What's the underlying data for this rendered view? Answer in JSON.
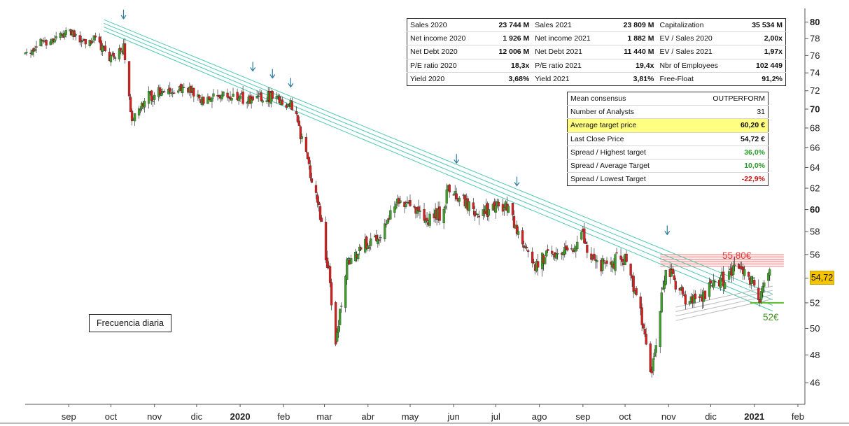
{
  "chart_data": {
    "type": "candlestick",
    "frequency_label": "Frecuencia diaria",
    "ylim": [
      44.5,
      81
    ],
    "y_ticks": [
      46,
      48,
      50,
      52,
      54,
      56,
      58,
      60,
      62,
      64,
      66,
      68,
      70,
      72,
      74,
      76,
      78,
      80
    ],
    "bold_y_ticks": [
      60,
      70,
      80
    ],
    "x_ticks": [
      {
        "label": "sep",
        "date": "2019-09-15"
      },
      {
        "label": "oct",
        "date": "2019-10-15"
      },
      {
        "label": "nov",
        "date": "2019-11-15"
      },
      {
        "label": "dic",
        "date": "2019-12-15"
      },
      {
        "label": "2020",
        "date": "2020-01-15",
        "bold": true
      },
      {
        "label": "feb",
        "date": "2020-02-15"
      },
      {
        "label": "mar",
        "date": "2020-03-15"
      },
      {
        "label": "abr",
        "date": "2020-04-15"
      },
      {
        "label": "may",
        "date": "2020-05-15"
      },
      {
        "label": "jun",
        "date": "2020-06-15"
      },
      {
        "label": "jul",
        "date": "2020-07-15"
      },
      {
        "label": "ago",
        "date": "2020-08-15"
      },
      {
        "label": "sep",
        "date": "2020-09-15"
      },
      {
        "label": "oct",
        "date": "2020-10-15"
      },
      {
        "label": "nov",
        "date": "2020-11-15"
      },
      {
        "label": "dic",
        "date": "2020-12-15"
      },
      {
        "label": "2021",
        "date": "2021-01-15",
        "bold": true
      },
      {
        "label": "feb",
        "date": "2021-02-15"
      }
    ],
    "x_range": [
      "2019-08-15",
      "2021-02-20"
    ],
    "price_path": [
      [
        "2019-08-15",
        76.0
      ],
      [
        "2019-08-25",
        77.5
      ],
      [
        "2019-09-05",
        78.0
      ],
      [
        "2019-09-15",
        79.0
      ],
      [
        "2019-09-25",
        77.5
      ],
      [
        "2019-10-05",
        78.0
      ],
      [
        "2019-10-15",
        75.5
      ],
      [
        "2019-10-24",
        77.0
      ],
      [
        "2019-10-30",
        68.8
      ],
      [
        "2019-11-08",
        71.0
      ],
      [
        "2019-11-20",
        72.0
      ],
      [
        "2019-12-05",
        72.3
      ],
      [
        "2019-12-20",
        71.0
      ],
      [
        "2020-01-08",
        71.5
      ],
      [
        "2020-01-22",
        70.8
      ],
      [
        "2020-02-05",
        71.3
      ],
      [
        "2020-02-20",
        70.5
      ],
      [
        "2020-02-26",
        68.0
      ],
      [
        "2020-03-05",
        63.5
      ],
      [
        "2020-03-12",
        59.5
      ],
      [
        "2020-03-19",
        53.5
      ],
      [
        "2020-03-23",
        49.0
      ],
      [
        "2020-03-31",
        55.0
      ],
      [
        "2020-04-15",
        57.0
      ],
      [
        "2020-04-25",
        58.0
      ],
      [
        "2020-05-05",
        60.5
      ],
      [
        "2020-05-15",
        61.0
      ],
      [
        "2020-05-25",
        59.0
      ],
      [
        "2020-06-05",
        59.5
      ],
      [
        "2020-06-12",
        62.0
      ],
      [
        "2020-06-20",
        61.0
      ],
      [
        "2020-06-30",
        59.5
      ],
      [
        "2020-07-10",
        60.0
      ],
      [
        "2020-07-22",
        60.5
      ],
      [
        "2020-08-01",
        57.5
      ],
      [
        "2020-08-10",
        55.0
      ],
      [
        "2020-08-20",
        56.0
      ],
      [
        "2020-09-05",
        56.5
      ],
      [
        "2020-09-15",
        57.5
      ],
      [
        "2020-09-25",
        55.0
      ],
      [
        "2020-10-05",
        55.5
      ],
      [
        "2020-10-15",
        55.5
      ],
      [
        "2020-10-22",
        53.0
      ],
      [
        "2020-10-30",
        49.0
      ],
      [
        "2020-11-03",
        46.5
      ],
      [
        "2020-11-09",
        51.5
      ],
      [
        "2020-11-13",
        55.0
      ],
      [
        "2020-11-20",
        53.5
      ],
      [
        "2020-11-28",
        52.0
      ],
      [
        "2020-12-08",
        52.5
      ],
      [
        "2020-12-18",
        53.5
      ],
      [
        "2020-12-30",
        54.5
      ],
      [
        "2021-01-08",
        55.0
      ],
      [
        "2021-01-14",
        53.5
      ],
      [
        "2021-01-19",
        52.5
      ],
      [
        "2021-01-26",
        54.72
      ]
    ],
    "trend_channel": {
      "start": [
        "2019-10-10",
        80.3
      ],
      "end": [
        "2021-01-28",
        52.7
      ],
      "lines": 4,
      "spacing": 0.45,
      "color": "#4ec9b0"
    },
    "support_wedge": {
      "start": [
        "2020-11-20",
        50.6
      ],
      "end": [
        "2021-01-28",
        52.3
      ],
      "lines": 4,
      "spacing": -0.35,
      "color": "#bbbbbb"
    },
    "resistance_zone": {
      "from": "2020-11-09",
      "to": "2021-02-05",
      "low": 55.0,
      "high": 56.0,
      "color": "#f28c8c"
    },
    "support_line": {
      "from": "2021-01-12",
      "to": "2021-02-05",
      "level": 52.0,
      "color": "#5cbf2a"
    },
    "touch_arrows": [
      [
        "2019-10-24",
        80.5
      ],
      [
        "2020-01-24",
        74.3
      ],
      [
        "2020-02-07",
        73.5
      ],
      [
        "2020-02-20",
        72.5
      ],
      [
        "2020-06-17",
        64.5
      ],
      [
        "2020-07-30",
        62.3
      ],
      [
        "2020-11-14",
        57.8
      ]
    ],
    "last_close": "54,72",
    "annotations": {
      "resistance": "55,80€",
      "support": "52€"
    },
    "colors": {
      "up": "#3f9f2a",
      "down": "#d42222",
      "axis": "#555555",
      "arrow": "#2b7aa0"
    }
  },
  "financials": {
    "rows": [
      [
        "Sales 2020",
        "23 744 M",
        "Sales 2021",
        "23 809 M",
        "Capitalization",
        "35 534 M"
      ],
      [
        "Net income 2020",
        "1 926 M",
        "Net income 2021",
        "1 882 M",
        "EV / Sales 2020",
        "2,00x"
      ],
      [
        "Net Debt 2020",
        "12 006 M",
        "Net Debt 2021",
        "11 440 M",
        "EV / Sales 2021",
        "1,97x"
      ],
      [
        "P/E ratio 2020",
        "18,3x",
        "P/E ratio 2021",
        "19,4x",
        "Nbr of Employees",
        "102 449"
      ],
      [
        "Yield 2020",
        "3,68%",
        "Yield 2021",
        "3,81%",
        "Free-Float",
        "91,2%"
      ]
    ]
  },
  "consensus": {
    "rows": [
      {
        "label": "Mean consensus",
        "value": "OUTPERFORM",
        "bold": false
      },
      {
        "label": "Number of Analysts",
        "value": "31",
        "bold": false
      },
      {
        "label": "Average target price",
        "value": "60,20 €",
        "bold": true,
        "highlight": true
      },
      {
        "label": "Last Close Price",
        "value": "54,72 €",
        "bold": true
      },
      {
        "label": "Spread / Highest target",
        "value": "36,0%",
        "bold": true,
        "color": "green"
      },
      {
        "label": "Spread / Average Target",
        "value": "10,0%",
        "bold": true,
        "color": "green"
      },
      {
        "label": "Spread / Lowest Target",
        "value": "-22,9%",
        "bold": true,
        "color": "red"
      }
    ]
  }
}
